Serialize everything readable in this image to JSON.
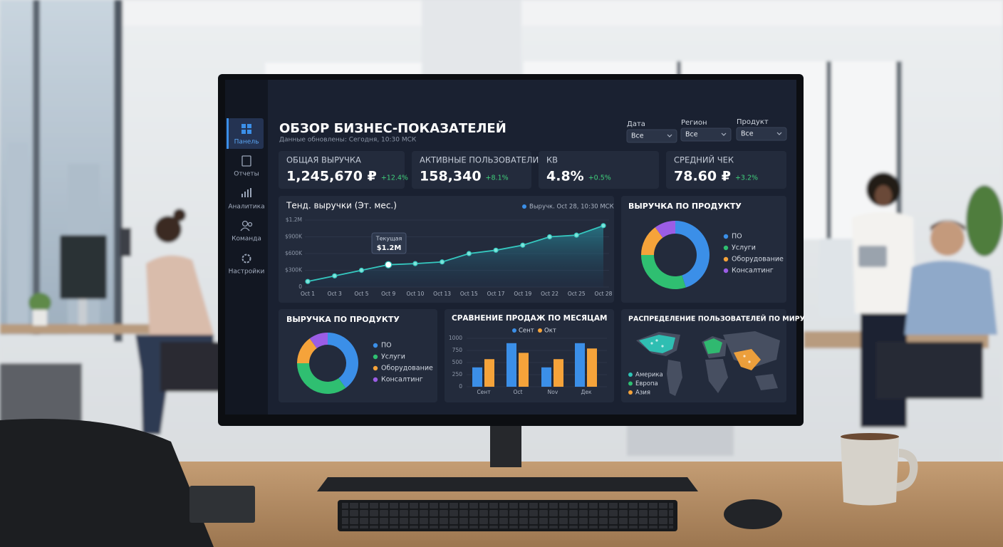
{
  "sidebar": [
    {
      "label": "Панель"
    },
    {
      "label": "Отчеты"
    },
    {
      "label": "Аналитика"
    },
    {
      "label": "Команда"
    },
    {
      "label": "Настройки"
    }
  ],
  "header": {
    "title": "ОБЗОР БИЗНЕС-ПОКАЗАТЕЛЕЙ",
    "subtitle": "Данные обновлены: Сегодня, 10:30 МСК"
  },
  "filters": [
    {
      "label": "Дата",
      "value": "Все"
    },
    {
      "label": "Регион",
      "value": "Все"
    },
    {
      "label": "Продукт",
      "value": "Все"
    }
  ],
  "kpis": [
    {
      "label": "ОБЩАЯ ВЫРУЧКА",
      "value": "1,245,670 ₽",
      "change": "+12.4%"
    },
    {
      "label": "АКТИВНЫЕ ПОЛЬЗОВАТЕЛИ",
      "value": "158,340",
      "change": "+8.1%"
    },
    {
      "label": "КВ",
      "value": "4.8%",
      "change": "+0.5%"
    },
    {
      "label": "СРЕДНИЙ ЧЕК",
      "value": "78.60 ₽",
      "change": "+3.2%"
    }
  ],
  "revenue_trend": {
    "type": "line",
    "title": "Тенд. выручки (Эт. мес.)",
    "categories": [
      "Oct 1",
      "Oct 3",
      "Oct 5",
      "Oct 9",
      "Oct 10",
      "Oct 13",
      "Oct 15",
      "Oct 17",
      "Oct 19",
      "Oct 22",
      "Oct 25",
      "Oct 28"
    ],
    "series": [
      {
        "name": "Выручк. Oct 28, 10:30 МСК",
        "color": "#35c9c0",
        "values": [
          100000,
          200000,
          300000,
          400000,
          420000,
          450000,
          600000,
          660000,
          750000,
          900000,
          930000,
          1100000
        ]
      }
    ],
    "ylim": [
      0,
      1200000
    ],
    "yticks": [
      {
        "value": 0,
        "label": "0"
      },
      {
        "value": 300000,
        "label": "$300K"
      },
      {
        "value": 600000,
        "label": "$600K"
      },
      {
        "value": 900000,
        "label": "$900K"
      },
      {
        "value": 1200000,
        "label": "$1.2M"
      }
    ],
    "annotation": {
      "title": "Текущая",
      "value": "$1.2M"
    },
    "grid": true
  },
  "product_revenue": {
    "type": "donut",
    "title": "ВЫРУЧКА ПО ПРОДУКТУ",
    "categories": [
      "ПО",
      "Услуги",
      "Оборудование",
      "Консалтинг"
    ],
    "values": [
      45,
      30,
      15,
      10
    ],
    "colors": [
      "#3b8fe8",
      "#2fbf71",
      "#f5a33a",
      "#9b5de5"
    ]
  },
  "product_revenue_2": {
    "type": "donut",
    "title": "ВЫРУЧКА ПО ПРОДУКТУ",
    "categories": [
      "ПО",
      "Услуги",
      "Оборудование",
      "Консалтинг"
    ],
    "values": [
      40,
      35,
      15,
      10
    ],
    "colors": [
      "#3b8fe8",
      "#2fbf71",
      "#f5a33a",
      "#9b5de5"
    ]
  },
  "monthly_sales": {
    "type": "bar",
    "title": "СРАВНЕНИЕ ПРОДАЖ ПО МЕСЯЦАМ",
    "categories": [
      "Сент",
      "Oct",
      "Nov",
      "Дек"
    ],
    "series": [
      {
        "name": "Сент",
        "color": "#3b8fe8",
        "values": [
          400,
          900,
          400,
          900
        ]
      },
      {
        "name": "Окт",
        "color": "#f5a33a",
        "values": [
          570,
          700,
          570,
          790
        ]
      }
    ],
    "ylim": [
      0,
      1000
    ],
    "yticks": [
      0,
      250,
      500,
      750,
      1000
    ],
    "grid": true
  },
  "world_users": {
    "type": "map",
    "title": "РАСПРЕДЕЛЕНИЕ ПОЛЬЗОВАТЕЛЕЙ ПО МИРУ",
    "legend": [
      {
        "name": "Америка",
        "color": "#2ec4b6"
      },
      {
        "name": "Европа",
        "color": "#2fbf71"
      },
      {
        "name": "Азия",
        "color": "#f5a33a"
      }
    ]
  }
}
